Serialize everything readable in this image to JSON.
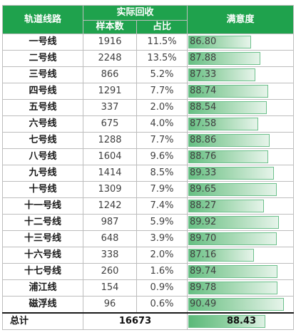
{
  "headers": {
    "route": "轨道线路",
    "recovery": "实际回收",
    "sample_count": "样本数",
    "share": "占比",
    "satisfaction": "满意度"
  },
  "rows": [
    {
      "route": "一号线",
      "count": "1916",
      "pct": "11.5%",
      "sat": "86.80",
      "sat_value": 86.8
    },
    {
      "route": "二号线",
      "count": "2248",
      "pct": "13.5%",
      "sat": "87.88",
      "sat_value": 87.88
    },
    {
      "route": "三号线",
      "count": "866",
      "pct": "5.2%",
      "sat": "87.33",
      "sat_value": 87.33
    },
    {
      "route": "四号线",
      "count": "1291",
      "pct": "7.7%",
      "sat": "88.74",
      "sat_value": 88.74
    },
    {
      "route": "五号线",
      "count": "337",
      "pct": "2.0%",
      "sat": "88.54",
      "sat_value": 88.54
    },
    {
      "route": "六号线",
      "count": "675",
      "pct": "4.0%",
      "sat": "87.58",
      "sat_value": 87.58
    },
    {
      "route": "七号线",
      "count": "1288",
      "pct": "7.7%",
      "sat": "88.86",
      "sat_value": 88.86
    },
    {
      "route": "八号线",
      "count": "1604",
      "pct": "9.6%",
      "sat": "88.76",
      "sat_value": 88.76
    },
    {
      "route": "九号线",
      "count": "1414",
      "pct": "8.5%",
      "sat": "89.33",
      "sat_value": 89.33
    },
    {
      "route": "十号线",
      "count": "1309",
      "pct": "7.9%",
      "sat": "89.65",
      "sat_value": 89.65
    },
    {
      "route": "十一号线",
      "count": "1242",
      "pct": "7.4%",
      "sat": "88.27",
      "sat_value": 88.27
    },
    {
      "route": "十二号线",
      "count": "987",
      "pct": "5.9%",
      "sat": "89.92",
      "sat_value": 89.92
    },
    {
      "route": "十三号线",
      "count": "648",
      "pct": "3.9%",
      "sat": "89.70",
      "sat_value": 89.7
    },
    {
      "route": "十六号线",
      "count": "338",
      "pct": "2.0%",
      "sat": "87.16",
      "sat_value": 87.16
    },
    {
      "route": "十七号线",
      "count": "260",
      "pct": "1.6%",
      "sat": "89.74",
      "sat_value": 89.74
    },
    {
      "route": "浦江线",
      "count": "154",
      "pct": "0.9%",
      "sat": "89.78",
      "sat_value": 89.78
    },
    {
      "route": "磁浮线",
      "count": "96",
      "pct": "0.6%",
      "sat": "90.49",
      "sat_value": 90.49
    }
  ],
  "total": {
    "label": "总计",
    "count": "16673",
    "sat": "88.43",
    "sat_value": 88.43
  },
  "colors": {
    "header_bg": "#1fa24d",
    "bar_start": "#67bf83",
    "bar_end": "#e6f4ea"
  }
}
